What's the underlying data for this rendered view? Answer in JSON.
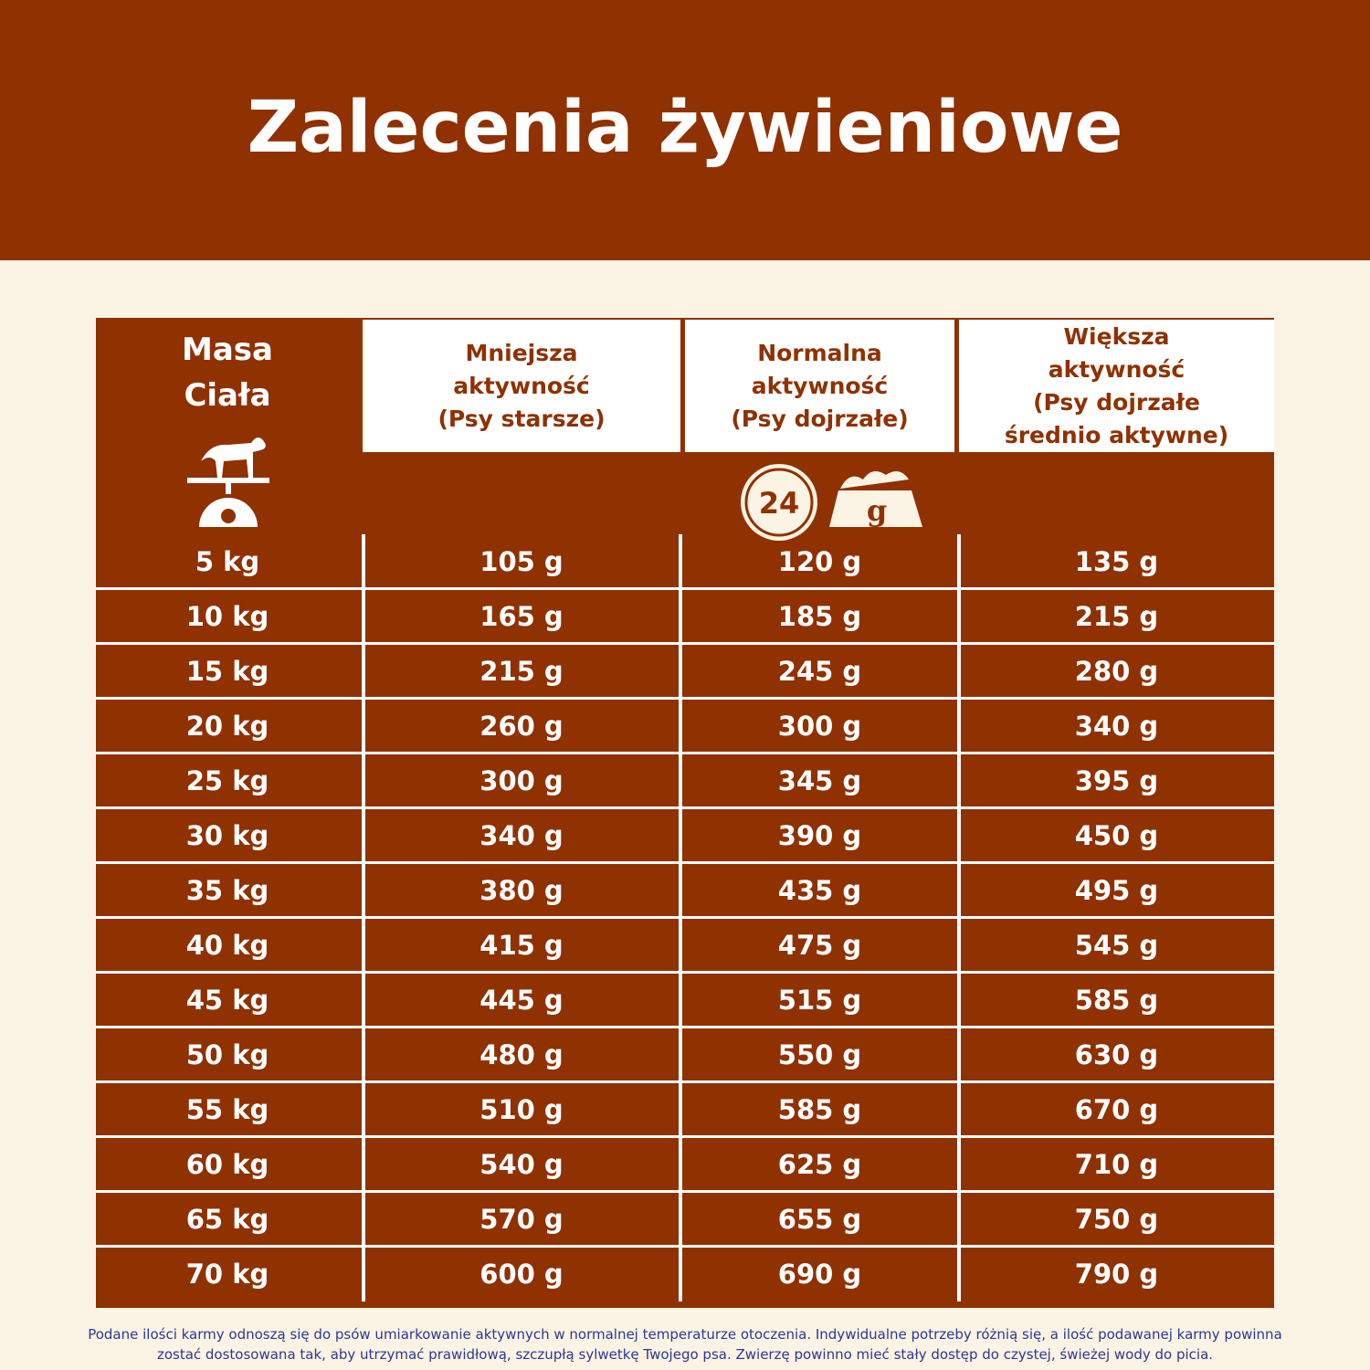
{
  "header": {
    "title": "Zalecenia żywieniowe"
  },
  "table": {
    "headers": [
      [
        "Masa",
        "Ciała"
      ],
      [
        "Mniejsza",
        "aktywność",
        "(Psy starsze)"
      ],
      [
        "Normalna",
        "aktywność",
        "(Psy dojrzałe)"
      ],
      [
        "Większa",
        "aktywność",
        "(Psy dojrzałe",
        "średnio aktywne)"
      ]
    ],
    "icons": {
      "clock_label": "24",
      "bowl_label": "g"
    },
    "rows": [
      [
        "5 kg",
        "105 g",
        "120 g",
        "135 g"
      ],
      [
        "10 kg",
        "165 g",
        "185 g",
        "215 g"
      ],
      [
        "15 kg",
        "215 g",
        "245 g",
        "280 g"
      ],
      [
        "20 kg",
        "260 g",
        "300 g",
        "340 g"
      ],
      [
        "25 kg",
        "300 g",
        "345 g",
        "395 g"
      ],
      [
        "30 kg",
        "340 g",
        "390 g",
        "450 g"
      ],
      [
        "35 kg",
        "380 g",
        "435 g",
        "495 g"
      ],
      [
        "40 kg",
        "415 g",
        "475 g",
        "545 g"
      ],
      [
        "45 kg",
        "445 g",
        "515 g",
        "585 g"
      ],
      [
        "50 kg",
        "480 g",
        "550 g",
        "630 g"
      ],
      [
        "55 kg",
        "510 g",
        "585 g",
        "670 g"
      ],
      [
        "60 kg",
        "540 g",
        "625 g",
        "710 g"
      ],
      [
        "65 kg",
        "570 g",
        "655 g",
        "750 g"
      ],
      [
        "70 kg",
        "600 g",
        "690 g",
        "790 g"
      ]
    ]
  },
  "footnote": "Podane ilości karmy odnoszą się do psów umiarkowanie aktywnych w normalnej temperaturze otoczenia. Indywidualne potrzeby różnią się, a ilość podawanej karmy powinna zostać dostosowana tak, aby utrzymać prawidłową, szczupłą sylwetkę Twojego psa. Zwierzę powinno mieć stały dostęp do czystej, świeżej wody do picia."
}
